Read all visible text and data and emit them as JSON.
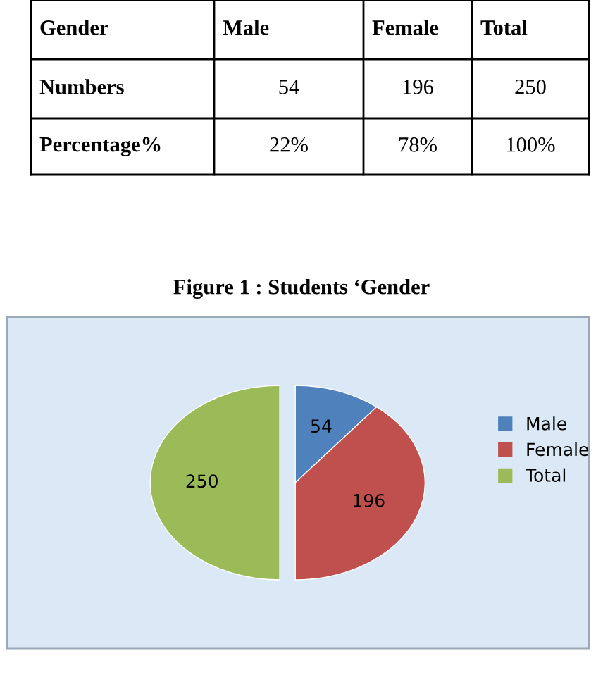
{
  "chart_data": {
    "type": "pie",
    "title": "Figure 1 : Students ‘Gender",
    "categories": [
      "Male",
      "Female",
      "Total"
    ],
    "values": [
      54,
      196,
      250
    ],
    "colors": [
      "#4f81bd",
      "#c0504d",
      "#9bbb59"
    ],
    "data_labels": true,
    "legend": "right",
    "annotations": [
      "Gender",
      "Male",
      "Female",
      "Total",
      "Numbers",
      "54",
      "196",
      "250",
      "Percentage%",
      "22%",
      "78%",
      "100%"
    ]
  }
}
